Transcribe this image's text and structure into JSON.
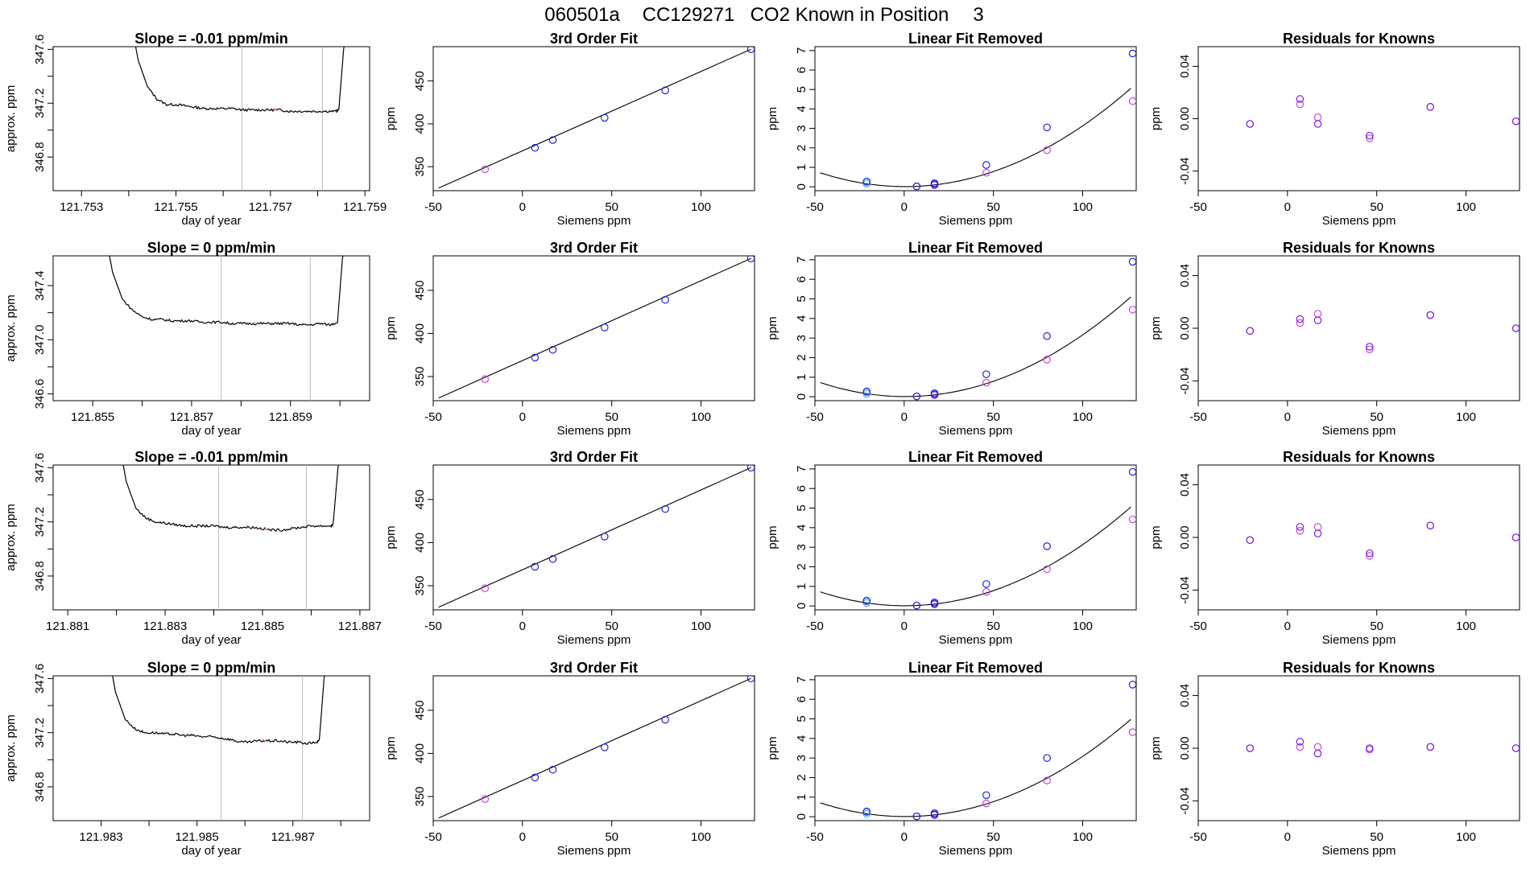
{
  "page_title": {
    "run_id": "060501a",
    "tank_id": "CC129271",
    "description": "CO2 Known in Position",
    "position": "3"
  },
  "colors": {
    "trace": "#000000",
    "vline": "#bbbbbb",
    "blue": "#2222dd",
    "magenta": "#cc44dd",
    "light_blue": "#55aaee",
    "pink": "#ff8888",
    "purple": "#7722dd"
  },
  "chart_data": [
    {
      "type": "line",
      "panel": "trace",
      "row": 1,
      "title": "Slope =  -0.01  ppm/min",
      "xlabel": "day of year",
      "ylabel": "approx. ppm",
      "xlim": [
        121.7524,
        121.7591
      ],
      "ylim": [
        346.55,
        347.62
      ],
      "xticks": [
        121.753,
        121.754,
        121.755,
        121.756,
        121.757,
        121.758,
        121.759
      ],
      "xticklabels": [
        "121.753",
        "",
        "121.755",
        "",
        "121.757",
        "",
        "121.759"
      ],
      "yticks": [
        346.8,
        347.0,
        347.2,
        347.4,
        347.6
      ],
      "yticklabels": [
        "346.8",
        "",
        "347.2",
        "",
        "347.6"
      ],
      "x": [
        121.754,
        121.7542,
        121.7544,
        121.7546,
        121.7548,
        121.755,
        121.7552,
        121.7554,
        121.7556,
        121.7558,
        121.756,
        121.7562,
        121.7564,
        121.7566,
        121.7568,
        121.757,
        121.7572,
        121.7574,
        121.7576,
        121.7578,
        121.758,
        121.7582,
        121.7584,
        121.75845,
        121.75855,
        121.7587
      ],
      "y": [
        347.9,
        347.52,
        347.32,
        347.23,
        347.19,
        347.19,
        347.18,
        347.17,
        347.16,
        347.16,
        347.16,
        347.16,
        347.15,
        347.15,
        347.15,
        347.15,
        347.15,
        347.14,
        347.14,
        347.14,
        347.14,
        347.14,
        347.14,
        347.16,
        347.6,
        347.9
      ],
      "vlines": [
        121.7564,
        121.7581
      ],
      "highlight_x": [
        121.7571
      ],
      "highlight_y": [
        347.15
      ]
    },
    {
      "type": "line",
      "panel": "trace",
      "row": 2,
      "title": "Slope =  0  ppm/min",
      "xlabel": "day of year",
      "ylabel": "approx. ppm",
      "xlim": [
        121.8542,
        121.8606
      ],
      "ylim": [
        346.55,
        347.62
      ],
      "xticks": [
        121.855,
        121.856,
        121.857,
        121.858,
        121.859,
        121.86
      ],
      "xticklabels": [
        "121.855",
        "",
        "121.857",
        "",
        "121.859",
        ""
      ],
      "yticks": [
        346.6,
        346.8,
        347.0,
        347.2,
        347.4
      ],
      "yticklabels": [
        "346.6",
        "",
        "347.0",
        "",
        "347.4"
      ],
      "x": [
        121.8552,
        121.8554,
        121.8556,
        121.8558,
        121.856,
        121.8562,
        121.8564,
        121.8566,
        121.8568,
        121.857,
        121.8572,
        121.8574,
        121.8576,
        121.8578,
        121.858,
        121.8582,
        121.8584,
        121.8586,
        121.8588,
        121.859,
        121.8592,
        121.8594,
        121.8596,
        121.8598,
        121.85995,
        121.86005,
        121.8602
      ],
      "y": [
        347.9,
        347.5,
        347.3,
        347.22,
        347.17,
        347.15,
        347.15,
        347.14,
        347.14,
        347.14,
        347.13,
        347.13,
        347.13,
        347.12,
        347.12,
        347.12,
        347.12,
        347.12,
        347.12,
        347.12,
        347.11,
        347.11,
        347.12,
        347.11,
        347.13,
        347.6,
        347.9
      ],
      "vlines": [
        121.8576,
        121.8594
      ],
      "highlight_x": [
        121.8583
      ],
      "highlight_y": [
        347.12
      ]
    },
    {
      "type": "line",
      "panel": "trace",
      "row": 3,
      "title": "Slope =  -0.01  ppm/min",
      "xlabel": "day of year",
      "ylabel": "approx. ppm",
      "xlim": [
        121.8807,
        121.8872
      ],
      "ylim": [
        346.55,
        347.62
      ],
      "xticks": [
        121.881,
        121.882,
        121.883,
        121.884,
        121.885,
        121.886,
        121.887
      ],
      "xticklabels": [
        "121.881",
        "",
        "121.883",
        "",
        "121.885",
        "",
        "121.887"
      ],
      "yticks": [
        346.8,
        347.0,
        347.2,
        347.4,
        347.6
      ],
      "yticklabels": [
        "346.8",
        "",
        "347.2",
        "",
        "347.6"
      ],
      "x": [
        121.882,
        121.8822,
        121.8824,
        121.8826,
        121.8828,
        121.883,
        121.8832,
        121.8834,
        121.8836,
        121.8838,
        121.884,
        121.8842,
        121.8844,
        121.8846,
        121.8848,
        121.885,
        121.8852,
        121.8854,
        121.8856,
        121.8858,
        121.886,
        121.8862,
        121.8864,
        121.88645,
        121.88655,
        121.8867
      ],
      "y": [
        347.9,
        347.5,
        347.3,
        347.23,
        347.2,
        347.19,
        347.18,
        347.17,
        347.17,
        347.17,
        347.17,
        347.16,
        347.16,
        347.16,
        347.16,
        347.15,
        347.14,
        347.14,
        347.15,
        347.16,
        347.17,
        347.17,
        347.17,
        347.18,
        347.6,
        347.9
      ],
      "vlines": [
        121.8841,
        121.8859
      ],
      "highlight_x": [
        121.8851
      ],
      "highlight_y": [
        347.14
      ]
    },
    {
      "type": "line",
      "panel": "trace",
      "row": 4,
      "title": "Slope =  0  ppm/min",
      "xlabel": "day of year",
      "ylabel": "approx. ppm",
      "xlim": [
        121.982,
        121.9886
      ],
      "ylim": [
        346.55,
        347.62
      ],
      "xticks": [
        121.983,
        121.984,
        121.985,
        121.986,
        121.987,
        121.988
      ],
      "xticklabels": [
        "121.983",
        "",
        "121.985",
        "",
        "121.987",
        ""
      ],
      "yticks": [
        346.8,
        347.0,
        347.2,
        347.4,
        347.6
      ],
      "yticklabels": [
        "346.8",
        "",
        "347.2",
        "",
        "347.6"
      ],
      "x": [
        121.9831,
        121.9833,
        121.9835,
        121.9837,
        121.9839,
        121.9841,
        121.9843,
        121.9845,
        121.9847,
        121.9849,
        121.9851,
        121.9853,
        121.9855,
        121.9857,
        121.9859,
        121.9861,
        121.9863,
        121.9865,
        121.9867,
        121.9869,
        121.9871,
        121.9873,
        121.9875,
        121.98755,
        121.98765,
        121.9878
      ],
      "y": [
        347.9,
        347.5,
        347.3,
        347.23,
        347.2,
        347.2,
        347.19,
        347.19,
        347.18,
        347.18,
        347.17,
        347.17,
        347.16,
        347.15,
        347.13,
        347.13,
        347.14,
        347.14,
        347.14,
        347.13,
        347.13,
        347.12,
        347.13,
        347.14,
        347.6,
        347.9
      ],
      "vlines": [
        121.9855,
        121.9872
      ],
      "highlight_x": [
        121.9864
      ],
      "highlight_y": [
        347.14
      ]
    },
    {
      "type": "scatter",
      "panel": "fit3",
      "row": 1,
      "title": "3rd Order Fit",
      "xlabel": "Siemens ppm",
      "ylabel": "ppm",
      "xlim": [
        -50,
        130
      ],
      "ylim": [
        322,
        490
      ],
      "xticks": [
        -50,
        0,
        50,
        100
      ],
      "yticks": [
        350,
        400,
        450
      ],
      "fit_line": {
        "x": [
          -47,
          128
        ],
        "y": [
          325,
          487
        ]
      },
      "points_x": [
        -21,
        7,
        17,
        46,
        80,
        128
      ],
      "points_y": [
        347,
        372,
        381,
        407,
        439,
        487
      ]
    },
    {
      "type": "scatter",
      "panel": "fit3",
      "row": 2,
      "title": "3rd Order Fit",
      "xlabel": "Siemens ppm",
      "ylabel": "ppm",
      "xlim": [
        -50,
        130
      ],
      "ylim": [
        322,
        490
      ],
      "xticks": [
        -50,
        0,
        50,
        100
      ],
      "yticks": [
        350,
        400,
        450
      ],
      "fit_line": {
        "x": [
          -47,
          128
        ],
        "y": [
          325,
          487
        ]
      },
      "points_x": [
        -21,
        7,
        17,
        46,
        80,
        128
      ],
      "points_y": [
        347,
        372,
        381,
        407,
        439,
        487
      ]
    },
    {
      "type": "scatter",
      "panel": "fit3",
      "row": 3,
      "title": "3rd Order Fit",
      "xlabel": "Siemens ppm",
      "ylabel": "ppm",
      "xlim": [
        -50,
        130
      ],
      "ylim": [
        322,
        490
      ],
      "xticks": [
        -50,
        0,
        50,
        100
      ],
      "yticks": [
        350,
        400,
        450
      ],
      "fit_line": {
        "x": [
          -47,
          128
        ],
        "y": [
          325,
          487
        ]
      },
      "points_x": [
        -21,
        7,
        17,
        46,
        80,
        128
      ],
      "points_y": [
        347,
        372,
        381,
        407,
        439,
        487
      ]
    },
    {
      "type": "scatter",
      "panel": "fit3",
      "row": 4,
      "title": "3rd Order Fit",
      "xlabel": "Siemens ppm",
      "ylabel": "ppm",
      "xlim": [
        -50,
        130
      ],
      "ylim": [
        322,
        490
      ],
      "xticks": [
        -50,
        0,
        50,
        100
      ],
      "yticks": [
        350,
        400,
        450
      ],
      "fit_line": {
        "x": [
          -47,
          128
        ],
        "y": [
          325,
          487
        ]
      },
      "points_x": [
        -21,
        7,
        17,
        46,
        80,
        128
      ],
      "points_y": [
        347,
        372,
        381,
        407,
        439,
        487
      ]
    },
    {
      "type": "scatter",
      "panel": "linfit",
      "row": 1,
      "title": "Linear Fit Removed",
      "xlabel": "Siemens ppm",
      "ylabel": "ppm",
      "xlim": [
        -50,
        130
      ],
      "ylim": [
        -0.2,
        7.2
      ],
      "xticks": [
        -50,
        0,
        50,
        100
      ],
      "yticks": [
        0,
        1,
        2,
        3,
        4,
        5,
        6,
        7
      ],
      "curve_coef": [
        0.000315,
        -0.00028,
        0.01
      ],
      "curve_xrange": [
        -47,
        128
      ],
      "blue_x": [
        -21,
        7,
        17,
        17,
        46,
        80,
        128
      ],
      "blue_y": [
        0.25,
        0.02,
        0.12,
        0.18,
        1.12,
        3.05,
        6.85
      ],
      "lightblue_x": [
        -21,
        -21
      ],
      "lightblue_y": [
        0.28,
        0.15
      ],
      "magenta_x": [
        7,
        17,
        46,
        80,
        128
      ],
      "magenta_y": [
        0.02,
        0.08,
        0.72,
        1.88,
        4.4
      ]
    },
    {
      "type": "scatter",
      "panel": "linfit",
      "row": 2,
      "title": "Linear Fit Removed",
      "xlabel": "Siemens ppm",
      "ylabel": "ppm",
      "xlim": [
        -50,
        130
      ],
      "ylim": [
        -0.2,
        7.2
      ],
      "xticks": [
        -50,
        0,
        50,
        100
      ],
      "yticks": [
        0,
        1,
        2,
        3,
        4,
        5,
        6,
        7
      ],
      "curve_coef": [
        0.000318,
        -0.00028,
        0.01
      ],
      "curve_xrange": [
        -47,
        128
      ],
      "blue_x": [
        -21,
        7,
        17,
        17,
        46,
        80,
        128
      ],
      "blue_y": [
        0.25,
        0.02,
        0.12,
        0.18,
        1.15,
        3.1,
        6.9
      ],
      "lightblue_x": [
        -21,
        -21
      ],
      "lightblue_y": [
        0.28,
        0.15
      ],
      "magenta_x": [
        7,
        17,
        46,
        80,
        128
      ],
      "magenta_y": [
        0.02,
        0.08,
        0.72,
        1.9,
        4.45
      ]
    },
    {
      "type": "scatter",
      "panel": "linfit",
      "row": 3,
      "title": "Linear Fit Removed",
      "xlabel": "Siemens ppm",
      "ylabel": "ppm",
      "xlim": [
        -50,
        130
      ],
      "ylim": [
        -0.2,
        7.2
      ],
      "xticks": [
        -50,
        0,
        50,
        100
      ],
      "yticks": [
        0,
        1,
        2,
        3,
        4,
        5,
        6,
        7
      ],
      "curve_coef": [
        0.000315,
        -0.00028,
        0.01
      ],
      "curve_xrange": [
        -47,
        128
      ],
      "blue_x": [
        -21,
        7,
        17,
        17,
        46,
        80,
        128
      ],
      "blue_y": [
        0.25,
        0.02,
        0.12,
        0.18,
        1.12,
        3.05,
        6.85
      ],
      "lightblue_x": [
        -21,
        -21
      ],
      "lightblue_y": [
        0.28,
        0.15
      ],
      "magenta_x": [
        7,
        17,
        46,
        80,
        128
      ],
      "magenta_y": [
        0.02,
        0.08,
        0.72,
        1.88,
        4.42
      ]
    },
    {
      "type": "scatter",
      "panel": "linfit",
      "row": 4,
      "title": "Linear Fit Removed",
      "xlabel": "Siemens ppm",
      "ylabel": "ppm",
      "xlim": [
        -50,
        130
      ],
      "ylim": [
        -0.2,
        7.2
      ],
      "xticks": [
        -50,
        0,
        50,
        100
      ],
      "yticks": [
        0,
        1,
        2,
        3,
        4,
        5,
        6,
        7
      ],
      "curve_coef": [
        0.00031,
        -0.00028,
        0.01
      ],
      "curve_xrange": [
        -47,
        128
      ],
      "blue_x": [
        -21,
        7,
        17,
        17,
        46,
        80,
        128
      ],
      "blue_y": [
        0.25,
        0.02,
        0.12,
        0.18,
        1.1,
        3.0,
        6.75
      ],
      "lightblue_x": [
        -21,
        -21
      ],
      "lightblue_y": [
        0.28,
        0.15
      ],
      "magenta_x": [
        7,
        17,
        46,
        80,
        128
      ],
      "magenta_y": [
        0.02,
        0.08,
        0.68,
        1.85,
        4.32
      ]
    },
    {
      "type": "scatter",
      "panel": "resid",
      "row": 1,
      "title": "Residuals for Knowns",
      "xlabel": "Siemens ppm",
      "ylabel": "ppm",
      "xlim": [
        -50,
        130
      ],
      "ylim": [
        -0.055,
        0.055
      ],
      "xticks": [
        -50,
        0,
        50,
        100
      ],
      "yticks": [
        -0.04,
        0.0,
        0.04
      ],
      "yticklabels": [
        "-0.04",
        "0.00",
        "0.04"
      ],
      "blue_x": [
        -21,
        7,
        17,
        46,
        80,
        128
      ],
      "blue_y": [
        -0.004,
        0.015,
        -0.004,
        -0.013,
        0.009,
        -0.002
      ],
      "magenta_x": [
        -21,
        7,
        17,
        46,
        80,
        128
      ],
      "magenta_y": [
        -0.004,
        0.011,
        0.001,
        -0.015,
        0.009,
        -0.002
      ]
    },
    {
      "type": "scatter",
      "panel": "resid",
      "row": 2,
      "title": "Residuals for Knowns",
      "xlabel": "Siemens ppm",
      "ylabel": "ppm",
      "xlim": [
        -50,
        130
      ],
      "ylim": [
        -0.055,
        0.055
      ],
      "xticks": [
        -50,
        0,
        50,
        100
      ],
      "yticks": [
        -0.04,
        0.0,
        0.04
      ],
      "yticklabels": [
        "-0.04",
        "0.00",
        "0.04"
      ],
      "blue_x": [
        -21,
        7,
        17,
        46,
        80,
        128
      ],
      "blue_y": [
        -0.002,
        0.007,
        0.006,
        -0.014,
        0.01,
        0.0
      ],
      "magenta_x": [
        -21,
        7,
        17,
        46,
        80,
        128
      ],
      "magenta_y": [
        -0.002,
        0.004,
        0.011,
        -0.016,
        0.01,
        0.0
      ]
    },
    {
      "type": "scatter",
      "panel": "resid",
      "row": 3,
      "title": "Residuals for Knowns",
      "xlabel": "Siemens ppm",
      "ylabel": "ppm",
      "xlim": [
        -50,
        130
      ],
      "ylim": [
        -0.055,
        0.055
      ],
      "xticks": [
        -50,
        0,
        50,
        100
      ],
      "yticks": [
        -0.04,
        0.0,
        0.04
      ],
      "yticklabels": [
        "-0.04",
        "0.00",
        "0.04"
      ],
      "blue_x": [
        -21,
        7,
        17,
        46,
        80,
        128
      ],
      "blue_y": [
        -0.002,
        0.008,
        0.003,
        -0.012,
        0.009,
        0.0
      ],
      "magenta_x": [
        -21,
        7,
        17,
        46,
        80,
        128
      ],
      "magenta_y": [
        -0.002,
        0.005,
        0.008,
        -0.014,
        0.009,
        0.0
      ]
    },
    {
      "type": "scatter",
      "panel": "resid",
      "row": 4,
      "title": "Residuals for Knowns",
      "xlabel": "Siemens ppm",
      "ylabel": "ppm",
      "xlim": [
        -50,
        130
      ],
      "ylim": [
        -0.055,
        0.055
      ],
      "xticks": [
        -50,
        0,
        50,
        100
      ],
      "yticks": [
        -0.04,
        0.0,
        0.04
      ],
      "yticklabels": [
        "-0.04",
        "0.00",
        "0.04"
      ],
      "blue_x": [
        -21,
        7,
        17,
        46,
        80,
        128
      ],
      "blue_y": [
        0.0,
        0.005,
        -0.004,
        0.0,
        0.001,
        0.0
      ],
      "magenta_x": [
        -21,
        7,
        17,
        46,
        80,
        128
      ],
      "magenta_y": [
        0.0,
        0.001,
        0.001,
        -0.001,
        0.001,
        0.0
      ]
    }
  ]
}
